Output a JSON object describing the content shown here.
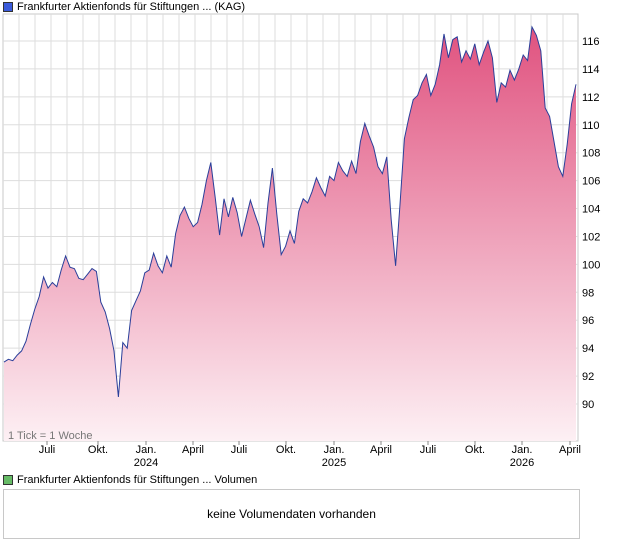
{
  "legend_price": {
    "label": "Frankfurter Aktienfonds für Stiftungen ...  (KAG)",
    "color": "#3b5bdb"
  },
  "legend_volume": {
    "label": "Frankfurter Aktienfonds für Stiftungen ...  Volumen",
    "color": "#66bb66"
  },
  "volume_panel": {
    "message": "keine Volumendaten vorhanden"
  },
  "chart_note": "1 Tick = 1 Woche",
  "colors": {
    "line": "#2a3f9a",
    "fill_top": "#e0527f",
    "fill_bottom": "#fdf0f4",
    "grid": "#dddddd"
  },
  "chart_data": {
    "type": "area",
    "title": "",
    "xlabel": "",
    "ylabel": "",
    "ylim": [
      87.5,
      118.5
    ],
    "y_ticks": [
      90,
      92,
      94,
      96,
      98,
      100,
      102,
      104,
      106,
      108,
      110,
      112,
      114,
      116
    ],
    "grid": true,
    "x_tick_labels": [
      "Juli",
      "Okt.",
      "Jan.",
      "April",
      "Juli",
      "Okt.",
      "Jan.",
      "April",
      "Juli",
      "Okt.",
      "Jan.",
      "April"
    ],
    "x_year_labels": [
      "2024",
      "2025",
      "2026"
    ],
    "series": [
      {
        "values": [
          93.0,
          93.2,
          93.1,
          93.5,
          93.8,
          94.5,
          95.7,
          96.8,
          97.7,
          99.1,
          98.3,
          98.7,
          98.4,
          99.6,
          100.6,
          99.8,
          99.7,
          99.0,
          98.9,
          99.3,
          99.7,
          99.5,
          97.3,
          96.6,
          95.4,
          93.8,
          90.5,
          94.4,
          94.0,
          96.7,
          97.4,
          98.1,
          99.4,
          99.6,
          100.8,
          99.9,
          99.4,
          100.6,
          99.8,
          102.2,
          103.5,
          104.1,
          103.3,
          102.7,
          103.0,
          104.3,
          106.0,
          107.3,
          104.8,
          102.1,
          104.7,
          103.4,
          104.8,
          103.7,
          102.0,
          103.3,
          104.6,
          103.6,
          102.7,
          101.2,
          104.4,
          106.9,
          103.6,
          100.7,
          101.3,
          102.4,
          101.5,
          103.8,
          104.7,
          104.4,
          105.2,
          106.2,
          105.5,
          104.9,
          106.3,
          106.0,
          107.3,
          106.7,
          106.3,
          107.4,
          106.5,
          108.8,
          110.1,
          109.2,
          108.4,
          107.0,
          106.5,
          107.7,
          103.2,
          99.9,
          104.3,
          109.0,
          110.5,
          111.8,
          112.1,
          113.0,
          113.6,
          112.1,
          112.9,
          114.3,
          116.5,
          114.8,
          116.1,
          116.3,
          114.5,
          115.3,
          114.7,
          115.8,
          114.3,
          115.2,
          116.0,
          114.8,
          111.6,
          113.0,
          112.7,
          113.9,
          113.2,
          114.0,
          115.0,
          114.6,
          117.0,
          116.4,
          115.3,
          111.2,
          110.6,
          108.8,
          107.0,
          106.3,
          108.6,
          111.5,
          112.9
        ]
      }
    ]
  }
}
